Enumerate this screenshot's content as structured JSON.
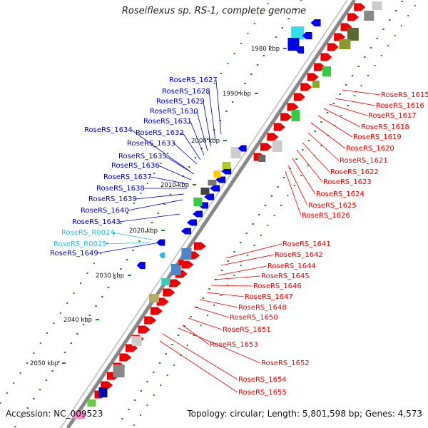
{
  "title": "Roseiflexus sp. RS-1, complete genome",
  "footer": {
    "accession": "Accession: NC_009523",
    "topology": "Topology: circular; Length: 5,801,598 bp; Genes: 4,573"
  },
  "kbp_ticks": [
    "1980 kbp",
    "1990 kbp",
    "2000 kbp",
    "2010 kbp",
    "2020 kbp",
    "2030 kbp",
    "2040 kbp",
    "2050 kbp"
  ],
  "labels_left": [
    {
      "text": "RoseRS_1627",
      "color": "#0000cc"
    },
    {
      "text": "RoseRS_1628",
      "color": "#0000cc"
    },
    {
      "text": "RoseRS_1629",
      "color": "#0000cc"
    },
    {
      "text": "RoseRS_1630",
      "color": "#0000cc"
    },
    {
      "text": "RoseRS_1631",
      "color": "#0000cc"
    },
    {
      "text": "RoseRS_1634",
      "color": "#0000cc"
    },
    {
      "text": "RoseRS_1632",
      "color": "#0000cc"
    },
    {
      "text": "RoseRS_1633",
      "color": "#0000cc"
    },
    {
      "text": "RoseRS_1635",
      "color": "#0000cc"
    },
    {
      "text": "RoseRS_1636",
      "color": "#0000cc"
    },
    {
      "text": "RoseRS_1637",
      "color": "#0000cc"
    },
    {
      "text": "RoseRS_1638",
      "color": "#0000cc"
    },
    {
      "text": "RoseRS_1639",
      "color": "#0000cc"
    },
    {
      "text": "RoseRS_1640",
      "color": "#0000cc"
    },
    {
      "text": "RoseRS_1643",
      "color": "#0000cc"
    },
    {
      "text": "RoseRS_R0024",
      "color": "#33bbdd"
    },
    {
      "text": "RoseRS_R0025",
      "color": "#33bbdd"
    },
    {
      "text": "RoseRS_1649",
      "color": "#0000cc"
    }
  ],
  "labels_right": [
    {
      "text": "RoseRS_1615",
      "color": "#ee0000"
    },
    {
      "text": "RoseRS_1616",
      "color": "#ee0000"
    },
    {
      "text": "RoseRS_1617",
      "color": "#ee0000"
    },
    {
      "text": "RoseRS_1618",
      "color": "#ee0000"
    },
    {
      "text": "RoseRS_1619",
      "color": "#ee0000"
    },
    {
      "text": "RoseRS_1620",
      "color": "#ee0000"
    },
    {
      "text": "RoseRS_1621",
      "color": "#ee0000"
    },
    {
      "text": "RoseRS_1622",
      "color": "#ee0000"
    },
    {
      "text": "RoseRS_1623",
      "color": "#ee0000"
    },
    {
      "text": "RoseRS_1624",
      "color": "#ee0000"
    },
    {
      "text": "RoseRS_1625",
      "color": "#ee0000"
    },
    {
      "text": "RoseRS_1626",
      "color": "#ee0000"
    },
    {
      "text": "RoseRS_1641",
      "color": "#ee0000"
    },
    {
      "text": "RoseRS_1642",
      "color": "#ee0000"
    },
    {
      "text": "RoseRS_1644",
      "color": "#ee0000"
    },
    {
      "text": "RoseRS_1645",
      "color": "#ee0000"
    },
    {
      "text": "RoseRS_1646",
      "color": "#ee0000"
    },
    {
      "text": "RoseRS_1647",
      "color": "#ee0000"
    },
    {
      "text": "RoseRS_1648",
      "color": "#ee0000"
    },
    {
      "text": "RoseRS_1650",
      "color": "#ee0000"
    },
    {
      "text": "RoseRS_1651",
      "color": "#ee0000"
    },
    {
      "text": "RoseRS_1653",
      "color": "#ee0000"
    },
    {
      "text": "RoseRS_1652",
      "color": "#ee0000"
    },
    {
      "text": "RoseRS_1654",
      "color": "#ee0000"
    },
    {
      "text": "RoseRS_1655",
      "color": "#ee0000"
    }
  ],
  "colors": {
    "forward_cds": "#ee0000",
    "reverse_cds": "#0000ee",
    "rna": "#33bbdd",
    "backbone": "#888888",
    "gc_dots": "#228822"
  }
}
